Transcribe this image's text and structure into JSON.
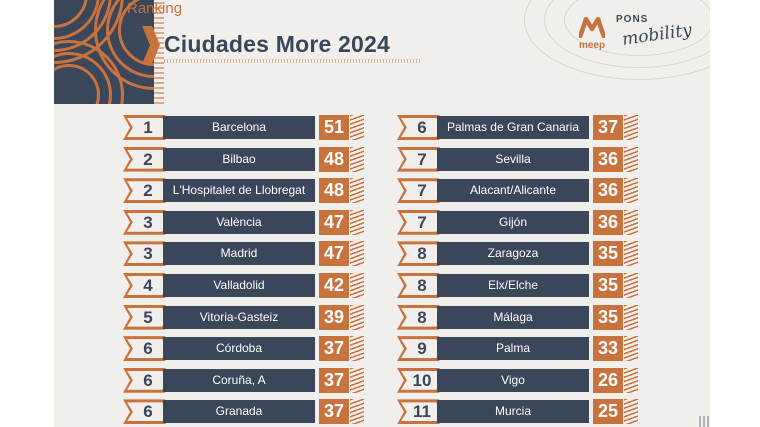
{
  "header": {
    "eyebrow": "Ranking",
    "title": "Ciudades More 2024"
  },
  "logos": {
    "meep": "meep",
    "pons": "PONS",
    "mobility": "mobility"
  },
  "ranking": {
    "left": [
      {
        "rank": "1",
        "city": "Barcelona",
        "score": "51"
      },
      {
        "rank": "2",
        "city": "Bilbao",
        "score": "48"
      },
      {
        "rank": "2",
        "city": "L'Hospitalet de Llobregat",
        "score": "48"
      },
      {
        "rank": "3",
        "city": "València",
        "score": "47"
      },
      {
        "rank": "3",
        "city": "Madrid",
        "score": "47"
      },
      {
        "rank": "4",
        "city": "Valladolid",
        "score": "42"
      },
      {
        "rank": "5",
        "city": "Vitoria-Gasteiz",
        "score": "39"
      },
      {
        "rank": "6",
        "city": "Córdoba",
        "score": "37"
      },
      {
        "rank": "6",
        "city": "Coruña, A",
        "score": "37"
      },
      {
        "rank": "6",
        "city": "Granada",
        "score": "37"
      }
    ],
    "right": [
      {
        "rank": "6",
        "city": "Palmas de Gran Canaria",
        "score": "37"
      },
      {
        "rank": "7",
        "city": "Sevilla",
        "score": "36"
      },
      {
        "rank": "7",
        "city": "Alacant/Alicante",
        "score": "36"
      },
      {
        "rank": "7",
        "city": "Gijón",
        "score": "36"
      },
      {
        "rank": "8",
        "city": "Zaragoza",
        "score": "35"
      },
      {
        "rank": "8",
        "city": "Elx/Elche",
        "score": "35"
      },
      {
        "rank": "8",
        "city": "Málaga",
        "score": "35"
      },
      {
        "rank": "9",
        "city": "Palma",
        "score": "33"
      },
      {
        "rank": "10",
        "city": "Vigo",
        "score": "26"
      },
      {
        "rank": "11",
        "city": "Murcia",
        "score": "25"
      }
    ]
  },
  "colors": {
    "navy": "#3a4659",
    "copper": "#c8733e",
    "background": "#f1efec"
  }
}
